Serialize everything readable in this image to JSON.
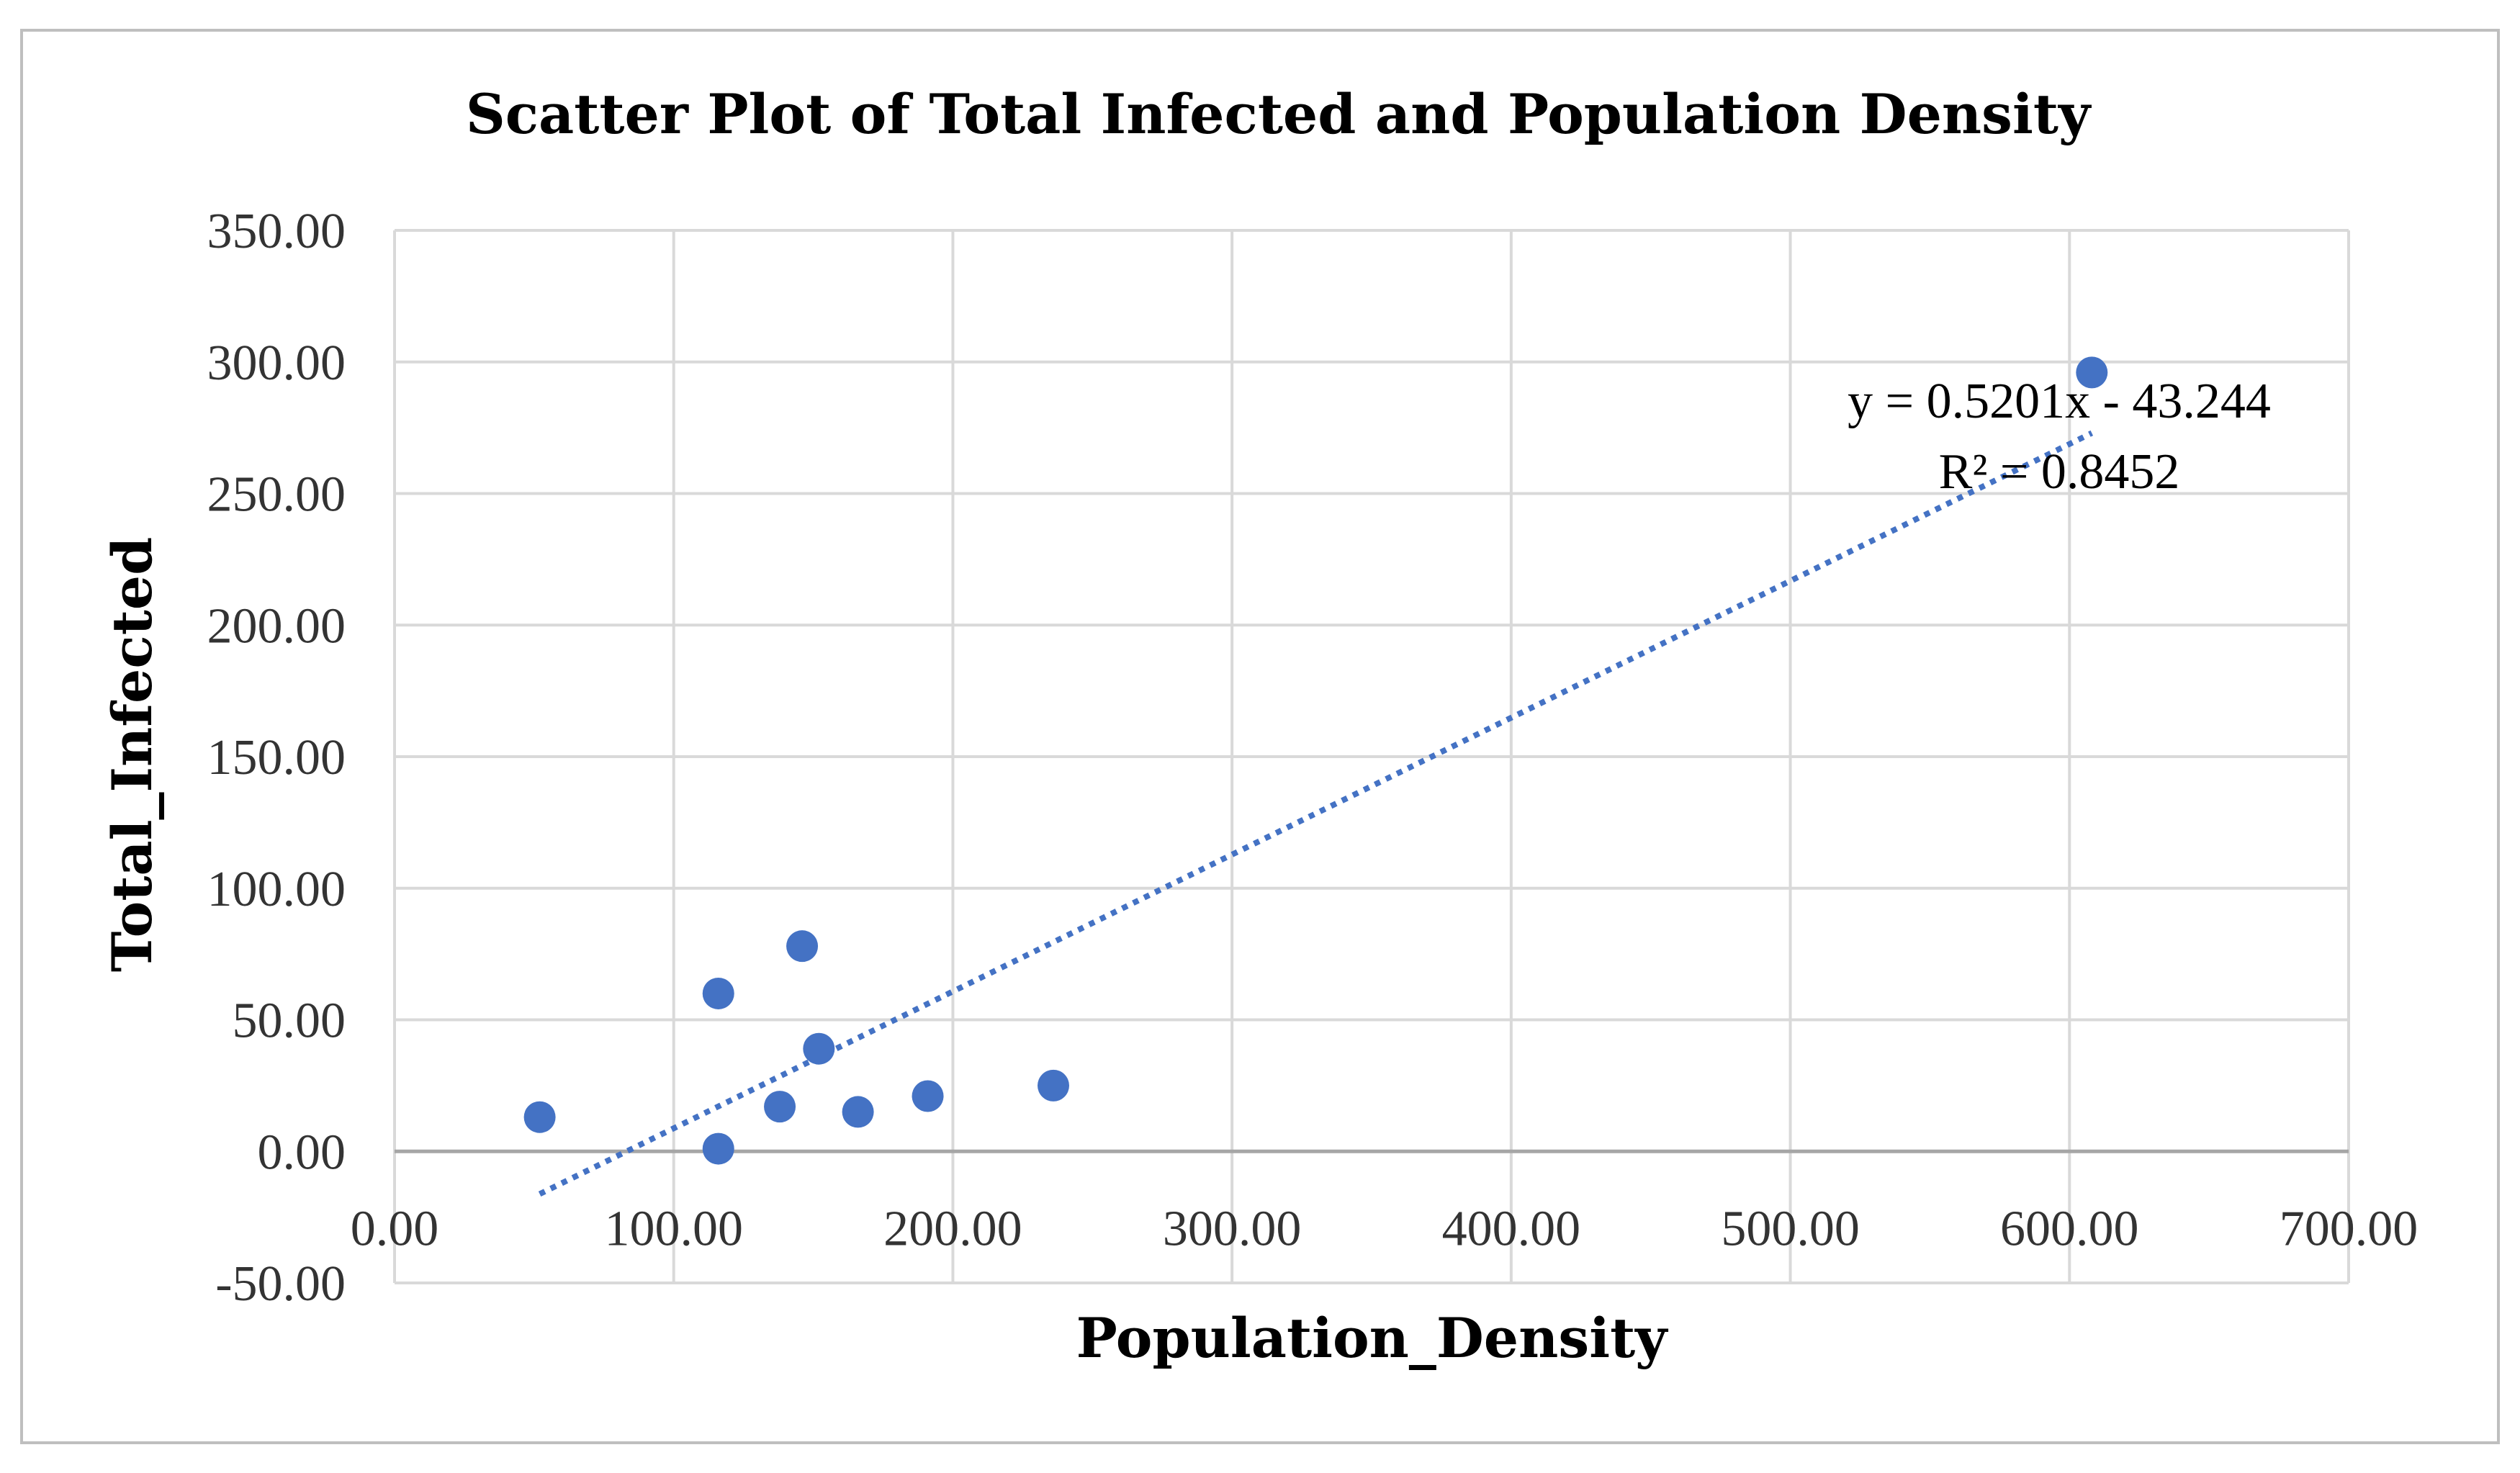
{
  "chart_data": {
    "type": "scatter",
    "title": "Scatter Plot of Total Infected and Population Density",
    "xlabel": "Population_Density",
    "ylabel": "Total_Infected",
    "xlim": [
      0,
      700
    ],
    "ylim": [
      -50,
      350
    ],
    "x_ticks": [
      0,
      100,
      200,
      300,
      400,
      500,
      600,
      700
    ],
    "y_ticks": [
      -50,
      0,
      50,
      100,
      150,
      200,
      250,
      300,
      350
    ],
    "x_tick_labels": [
      "0.00",
      "100.00",
      "200.00",
      "300.00",
      "400.00",
      "500.00",
      "600.00",
      "700.00"
    ],
    "y_tick_labels": [
      "-50.00",
      "0.00",
      "50.00",
      "100.00",
      "150.00",
      "200.00",
      "250.00",
      "300.00",
      "350.00"
    ],
    "grid": true,
    "series": [
      {
        "name": "Total_Infected",
        "color": "#4472C4",
        "points": [
          {
            "x": 52,
            "y": 13
          },
          {
            "x": 116,
            "y": 60
          },
          {
            "x": 116,
            "y": 1
          },
          {
            "x": 138,
            "y": 17
          },
          {
            "x": 146,
            "y": 78
          },
          {
            "x": 152,
            "y": 39
          },
          {
            "x": 166,
            "y": 15
          },
          {
            "x": 191,
            "y": 21
          },
          {
            "x": 236,
            "y": 25
          },
          {
            "x": 608,
            "y": 296
          }
        ]
      }
    ],
    "trendline": {
      "type": "linear",
      "slope": 0.5201,
      "intercept": -43.244,
      "x_start": 52,
      "x_end": 608,
      "color": "#4472C4",
      "style": "dotted",
      "equation_label": "y = 0.5201x - 43.244",
      "r2_label": "R² = 0.8452"
    }
  }
}
